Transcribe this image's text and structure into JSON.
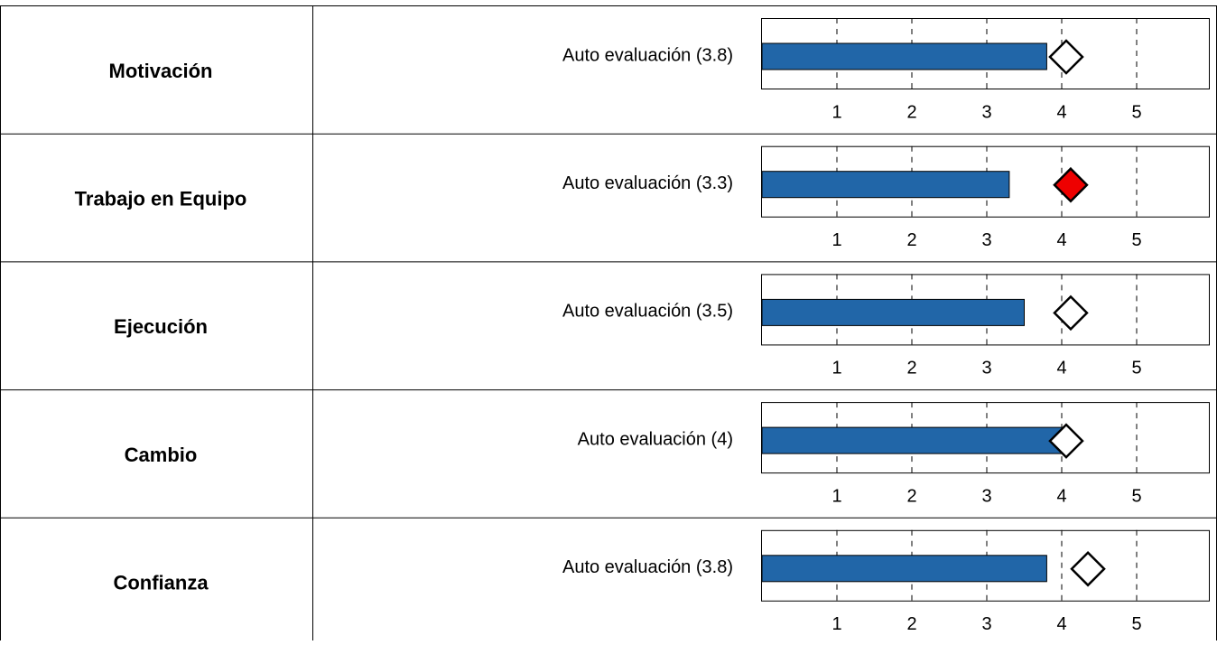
{
  "table": {
    "xlim": [
      0,
      6
    ],
    "xticks": [
      1,
      2,
      3,
      4,
      5
    ],
    "bar_color": "#2166a8",
    "rows": [
      {
        "name": "Motivación",
        "chart": {
          "type": "bar",
          "label": "Auto evaluación (3.8)",
          "value": 3.8,
          "marker": 4.06,
          "marker_color": "#ffffff"
        }
      },
      {
        "name": "Trabajo en Equipo",
        "chart": {
          "type": "bar",
          "label": "Auto evaluación (3.3)",
          "value": 3.3,
          "marker": 4.12,
          "marker_color": "#ee0000"
        }
      },
      {
        "name": "Ejecución",
        "chart": {
          "type": "bar",
          "label": "Auto evaluación (3.5)",
          "value": 3.5,
          "marker": 4.12,
          "marker_color": "#ffffff"
        }
      },
      {
        "name": "Cambio",
        "chart": {
          "type": "bar",
          "label": "Auto evaluación (4)",
          "value": 4,
          "marker": 4.06,
          "marker_color": "#ffffff"
        }
      },
      {
        "name": "Confianza",
        "chart": {
          "type": "bar",
          "label": "Auto evaluación (3.8)",
          "value": 3.8,
          "marker": 4.35,
          "marker_color": "#ffffff"
        }
      }
    ]
  }
}
